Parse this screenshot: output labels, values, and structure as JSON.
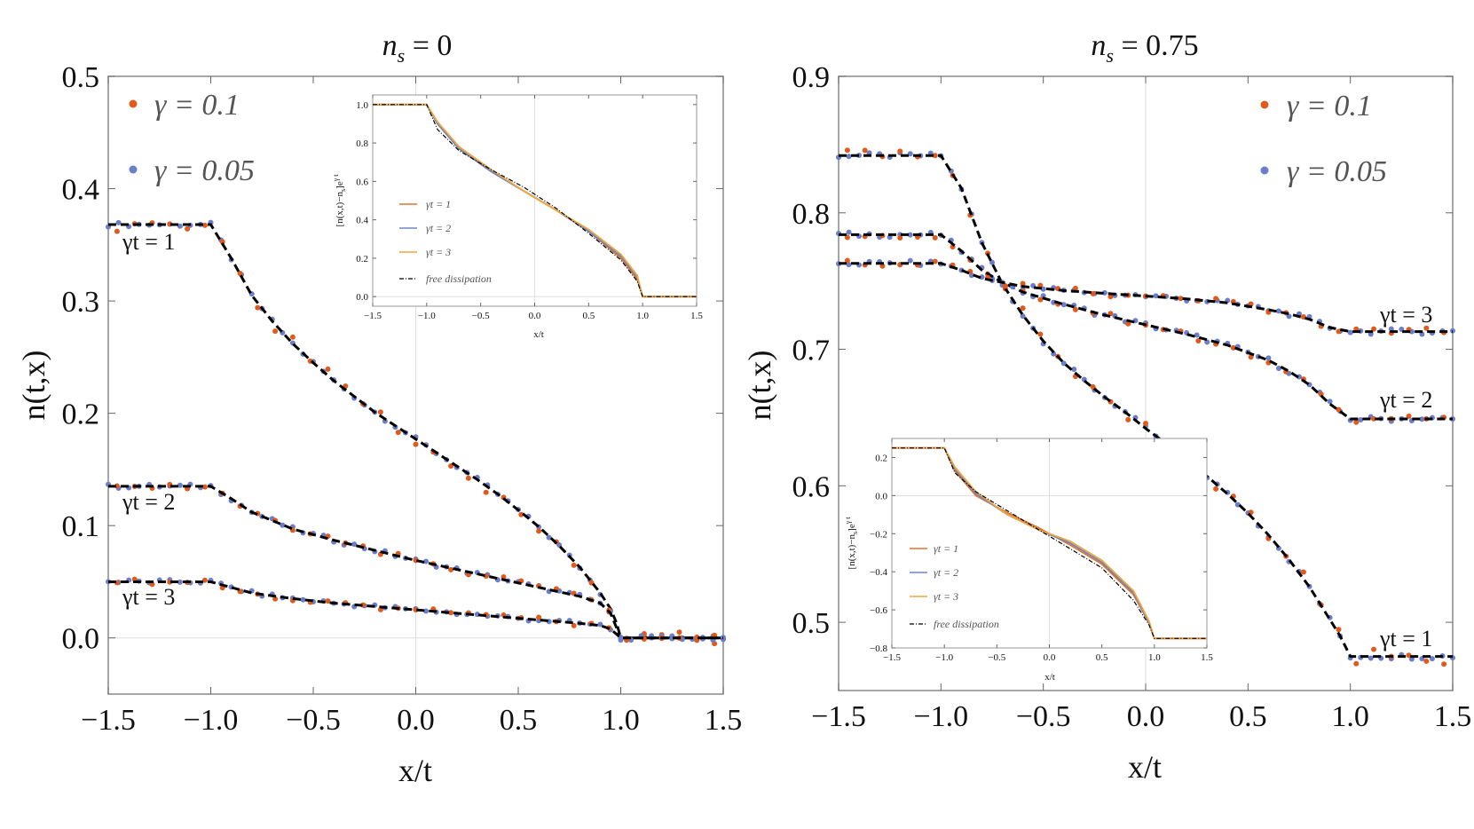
{
  "colors": {
    "gamma_0_1_points": "#e05a1c",
    "gamma_0_05_points": "#6b7ec9",
    "theory": "#000000",
    "inset_gt1": "#e0742c",
    "inset_gt2": "#6b85c7",
    "inset_gt3": "#f0a63a"
  },
  "chart_data": [
    {
      "type": "scatter",
      "title": "n_s = 0",
      "title_main": "n",
      "title_sub": "s",
      "title_rest": " = 0",
      "xlabel": "x/t",
      "ylabel": "n(t,x)",
      "xlim": [
        -1.5,
        1.5
      ],
      "ylim": [
        -0.05,
        0.5
      ],
      "xticks": [
        "−1.5",
        "−1.0",
        "−0.5",
        "0.0",
        "0.5",
        "1.0",
        "1.5"
      ],
      "yticks": [
        "0.0",
        "0.1",
        "0.2",
        "0.3",
        "0.4",
        "0.5"
      ],
      "legend": [
        {
          "symbol": "γ",
          "label": " = 0.1"
        },
        {
          "symbol": "γ",
          "label": " = 0.05"
        }
      ],
      "legend_position": "top-left",
      "curve_labels": [
        "γt = 1",
        "γt = 2",
        "γt = 3"
      ],
      "series": [
        {
          "name": "γt = 1",
          "x": [
            -1.5,
            -1.0,
            -0.9,
            -0.8,
            -0.7,
            -0.6,
            -0.5,
            -0.4,
            -0.3,
            -0.2,
            -0.1,
            0.0,
            0.1,
            0.2,
            0.3,
            0.4,
            0.5,
            0.6,
            0.7,
            0.8,
            0.9,
            0.95,
            0.98,
            1.0,
            1.5
          ],
          "y": [
            0.368,
            0.368,
            0.338,
            0.305,
            0.282,
            0.262,
            0.245,
            0.229,
            0.215,
            0.201,
            0.189,
            0.177,
            0.165,
            0.153,
            0.141,
            0.128,
            0.114,
            0.099,
            0.082,
            0.063,
            0.04,
            0.026,
            0.013,
            0.0,
            0.0
          ]
        },
        {
          "name": "γt = 2",
          "x": [
            -1.5,
            -1.0,
            -0.9,
            -0.8,
            -0.6,
            -0.4,
            -0.2,
            0.0,
            0.2,
            0.4,
            0.6,
            0.8,
            0.9,
            0.95,
            1.0,
            1.5
          ],
          "y": [
            0.135,
            0.135,
            0.124,
            0.112,
            0.097,
            0.087,
            0.078,
            0.069,
            0.061,
            0.053,
            0.045,
            0.037,
            0.031,
            0.022,
            0.0,
            0.0
          ]
        },
        {
          "name": "γt = 3",
          "x": [
            -1.5,
            -1.0,
            -0.9,
            -0.8,
            -0.6,
            -0.4,
            -0.2,
            0.0,
            0.2,
            0.4,
            0.6,
            0.8,
            0.9,
            0.95,
            1.0,
            1.5
          ],
          "y": [
            0.05,
            0.05,
            0.045,
            0.04,
            0.035,
            0.031,
            0.028,
            0.025,
            0.022,
            0.019,
            0.016,
            0.013,
            0.011,
            0.008,
            0.0,
            0.0
          ]
        }
      ],
      "inset": {
        "type": "line",
        "xlabel": "x/t",
        "ylabel": "[n(x,t)−n",
        "ylabel_sub": "s",
        "ylabel_tail": "]e",
        "ylabel_sup": "γ t",
        "xlim": [
          -1.5,
          1.5
        ],
        "ylim": [
          -0.05,
          1.05
        ],
        "xticks": [
          "−1.5",
          "−1.0",
          "−0.5",
          "0.0",
          "0.5",
          "1.0",
          "1.5"
        ],
        "yticks": [
          "0.0",
          "0.2",
          "0.4",
          "0.6",
          "0.8",
          "1.0"
        ],
        "legend": [
          "γt = 1",
          "γt = 2",
          "γt = 3",
          "free dissipation"
        ],
        "legend_position": "bottom-left",
        "series": [
          {
            "name": "γt = 1",
            "x": [
              -1.5,
              -1.0,
              -0.9,
              -0.7,
              -0.4,
              -0.1,
              0.2,
              0.5,
              0.8,
              0.95,
              1.0,
              1.5
            ],
            "y": [
              1.0,
              1.0,
              0.9,
              0.77,
              0.65,
              0.55,
              0.45,
              0.34,
              0.2,
              0.09,
              0.0,
              0.0
            ]
          },
          {
            "name": "γt = 2",
            "x": [
              -1.5,
              -1.0,
              -0.9,
              -0.7,
              -0.4,
              -0.1,
              0.2,
              0.5,
              0.8,
              0.95,
              1.0,
              1.5
            ],
            "y": [
              1.0,
              1.0,
              0.9,
              0.77,
              0.65,
              0.55,
              0.45,
              0.34,
              0.21,
              0.1,
              0.0,
              0.0
            ]
          },
          {
            "name": "γt = 3",
            "x": [
              -1.5,
              -1.0,
              -0.9,
              -0.7,
              -0.4,
              -0.1,
              0.2,
              0.5,
              0.8,
              0.95,
              1.0,
              1.5
            ],
            "y": [
              1.0,
              1.0,
              0.91,
              0.78,
              0.66,
              0.55,
              0.45,
              0.35,
              0.22,
              0.11,
              0.0,
              0.0
            ]
          },
          {
            "name": "free dissipation",
            "x": [
              -1.5,
              -1.0,
              -0.9,
              -0.7,
              -0.4,
              -0.1,
              0.2,
              0.5,
              0.8,
              0.95,
              1.0,
              1.5
            ],
            "y": [
              1.0,
              1.0,
              0.87,
              0.76,
              0.66,
              0.57,
              0.46,
              0.33,
              0.19,
              0.08,
              0.0,
              0.0
            ]
          }
        ]
      }
    },
    {
      "type": "scatter",
      "title": "n_s = 0.75",
      "title_main": "n",
      "title_sub": "s",
      "title_rest": " = 0.75",
      "xlabel": "x/t",
      "ylabel": "n(t,x)",
      "xlim": [
        -1.5,
        1.5
      ],
      "ylim": [
        0.45,
        0.9
      ],
      "xticks": [
        "−1.5",
        "−1.0",
        "−0.5",
        "0.0",
        "0.5",
        "1.0",
        "1.5"
      ],
      "yticks": [
        "0.5",
        "0.6",
        "0.7",
        "0.8",
        "0.9"
      ],
      "legend": [
        {
          "symbol": "γ",
          "label": " = 0.1"
        },
        {
          "symbol": "γ",
          "label": " = 0.05"
        }
      ],
      "legend_position": "top-right",
      "curve_labels": [
        "γt = 3",
        "γt = 2",
        "γt = 1"
      ],
      "series": [
        {
          "name": "γt = 1",
          "x": [
            -1.5,
            -1.0,
            -0.9,
            -0.8,
            -0.7,
            -0.6,
            -0.5,
            -0.4,
            -0.3,
            -0.2,
            -0.1,
            0.0,
            0.1,
            0.2,
            0.3,
            0.4,
            0.5,
            0.6,
            0.7,
            0.8,
            0.9,
            0.95,
            1.0,
            1.5
          ],
          "y": [
            0.842,
            0.842,
            0.818,
            0.778,
            0.748,
            0.725,
            0.706,
            0.69,
            0.677,
            0.665,
            0.654,
            0.642,
            0.631,
            0.619,
            0.607,
            0.594,
            0.58,
            0.564,
            0.546,
            0.526,
            0.502,
            0.49,
            0.475,
            0.475
          ]
        },
        {
          "name": "γt = 2",
          "x": [
            -1.5,
            -1.0,
            -0.9,
            -0.8,
            -0.7,
            -0.6,
            -0.4,
            -0.2,
            0.0,
            0.2,
            0.4,
            0.6,
            0.7,
            0.8,
            0.9,
            1.0,
            1.5
          ],
          "y": [
            0.784,
            0.784,
            0.772,
            0.758,
            0.749,
            0.742,
            0.733,
            0.725,
            0.718,
            0.711,
            0.703,
            0.692,
            0.684,
            0.674,
            0.66,
            0.649,
            0.649
          ]
        },
        {
          "name": "γt = 3",
          "x": [
            -1.5,
            -1.0,
            -0.9,
            -0.8,
            -0.7,
            -0.6,
            -0.4,
            -0.2,
            0.0,
            0.2,
            0.4,
            0.6,
            0.7,
            0.8,
            0.9,
            1.0,
            1.5
          ],
          "y": [
            0.763,
            0.763,
            0.758,
            0.752,
            0.749,
            0.746,
            0.743,
            0.741,
            0.739,
            0.737,
            0.734,
            0.729,
            0.726,
            0.722,
            0.716,
            0.713,
            0.713
          ]
        }
      ],
      "inset": {
        "type": "line",
        "xlabel": "x/t",
        "ylabel": "[n(x,t)−n",
        "ylabel_sub": "s",
        "ylabel_tail": "]e",
        "ylabel_sup": "γ t",
        "xlim": [
          -1.5,
          1.5
        ],
        "ylim": [
          -0.8,
          0.3
        ],
        "xticks": [
          "−1.5",
          "−1.0",
          "−0.5",
          "0.0",
          "0.5",
          "1.0",
          "1.5"
        ],
        "yticks": [
          "0.2",
          "0.0",
          "−0.2",
          "−0.4",
          "−0.6",
          "−0.8"
        ],
        "legend": [
          "γt = 1",
          "γt = 2",
          "γt = 3",
          "free dissipation"
        ],
        "legend_position": "bottom-left",
        "series": [
          {
            "name": "γt = 1",
            "x": [
              -1.5,
              -1.0,
              -0.9,
              -0.7,
              -0.4,
              -0.1,
              0.2,
              0.5,
              0.8,
              0.95,
              1.0,
              1.5
            ],
            "y": [
              0.25,
              0.25,
              0.13,
              0.0,
              -0.09,
              -0.17,
              -0.26,
              -0.36,
              -0.52,
              -0.67,
              -0.75,
              -0.75
            ]
          },
          {
            "name": "γt = 2",
            "x": [
              -1.5,
              -1.0,
              -0.9,
              -0.7,
              -0.4,
              -0.1,
              0.2,
              0.5,
              0.8,
              0.95,
              1.0,
              1.5
            ],
            "y": [
              0.25,
              0.25,
              0.14,
              0.01,
              -0.1,
              -0.18,
              -0.25,
              -0.35,
              -0.51,
              -0.67,
              -0.75,
              -0.75
            ]
          },
          {
            "name": "γt = 3",
            "x": [
              -1.5,
              -1.0,
              -0.9,
              -0.7,
              -0.4,
              -0.1,
              0.2,
              0.5,
              0.8,
              0.95,
              1.0,
              1.5
            ],
            "y": [
              0.25,
              0.25,
              0.15,
              0.02,
              -0.1,
              -0.18,
              -0.24,
              -0.34,
              -0.5,
              -0.66,
              -0.75,
              -0.75
            ]
          },
          {
            "name": "free dissipation",
            "x": [
              -1.5,
              -1.0,
              -0.9,
              -0.7,
              -0.4,
              -0.1,
              0.2,
              0.5,
              0.8,
              0.95,
              1.0,
              1.5
            ],
            "y": [
              0.25,
              0.25,
              0.12,
              0.02,
              -0.08,
              -0.18,
              -0.28,
              -0.38,
              -0.55,
              -0.68,
              -0.75,
              -0.75
            ]
          }
        ]
      }
    }
  ]
}
